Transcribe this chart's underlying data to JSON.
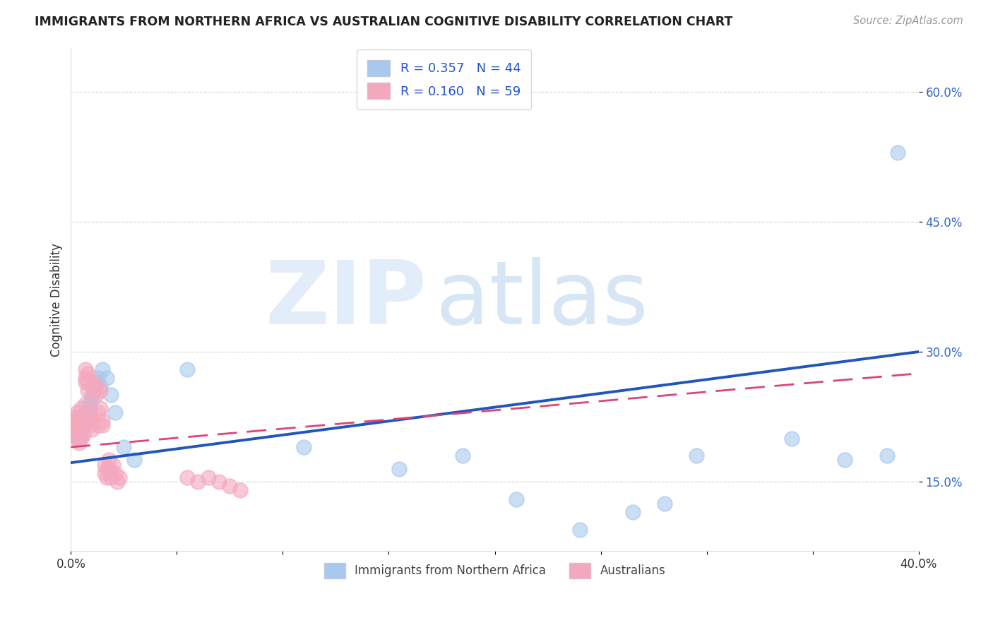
{
  "title": "IMMIGRANTS FROM NORTHERN AFRICA VS AUSTRALIAN COGNITIVE DISABILITY CORRELATION CHART",
  "source": "Source: ZipAtlas.com",
  "ylabel": "Cognitive Disability",
  "xlim": [
    0.0,
    0.4
  ],
  "ylim": [
    0.07,
    0.65
  ],
  "blue_R": 0.357,
  "blue_N": 44,
  "pink_R": 0.16,
  "pink_N": 59,
  "blue_color": "#A8C8EE",
  "pink_color": "#F4A8BE",
  "blue_line_color": "#2255BB",
  "pink_line_color": "#DD4477",
  "grid_color": "#CCCCCC",
  "watermark_zip": "ZIP",
  "watermark_atlas": "atlas",
  "blue_x": [
    0.001,
    0.001,
    0.002,
    0.002,
    0.003,
    0.003,
    0.004,
    0.004,
    0.005,
    0.005,
    0.005,
    0.006,
    0.006,
    0.007,
    0.007,
    0.008,
    0.008,
    0.009,
    0.009,
    0.01,
    0.01,
    0.011,
    0.012,
    0.013,
    0.014,
    0.015,
    0.017,
    0.019,
    0.021,
    0.025,
    0.03,
    0.055,
    0.11,
    0.155,
    0.185,
    0.21,
    0.24,
    0.265,
    0.28,
    0.295,
    0.34,
    0.365,
    0.385,
    0.39
  ],
  "blue_y": [
    0.22,
    0.21,
    0.215,
    0.205,
    0.22,
    0.215,
    0.21,
    0.2,
    0.215,
    0.21,
    0.205,
    0.22,
    0.215,
    0.225,
    0.22,
    0.235,
    0.23,
    0.24,
    0.235,
    0.25,
    0.245,
    0.255,
    0.265,
    0.27,
    0.26,
    0.28,
    0.27,
    0.25,
    0.23,
    0.19,
    0.175,
    0.28,
    0.19,
    0.165,
    0.18,
    0.13,
    0.095,
    0.115,
    0.125,
    0.18,
    0.2,
    0.175,
    0.18,
    0.53
  ],
  "pink_x": [
    0.001,
    0.001,
    0.001,
    0.002,
    0.002,
    0.002,
    0.003,
    0.003,
    0.003,
    0.003,
    0.004,
    0.004,
    0.004,
    0.005,
    0.005,
    0.005,
    0.005,
    0.006,
    0.006,
    0.006,
    0.007,
    0.007,
    0.007,
    0.007,
    0.008,
    0.008,
    0.008,
    0.009,
    0.009,
    0.01,
    0.01,
    0.011,
    0.011,
    0.012,
    0.012,
    0.013,
    0.013,
    0.014,
    0.014,
    0.015,
    0.015,
    0.016,
    0.016,
    0.017,
    0.017,
    0.018,
    0.018,
    0.019,
    0.019,
    0.02,
    0.021,
    0.022,
    0.023,
    0.055,
    0.06,
    0.065,
    0.07,
    0.075,
    0.08
  ],
  "pink_y": [
    0.215,
    0.22,
    0.225,
    0.205,
    0.21,
    0.215,
    0.2,
    0.215,
    0.22,
    0.23,
    0.195,
    0.21,
    0.225,
    0.2,
    0.215,
    0.225,
    0.235,
    0.205,
    0.215,
    0.225,
    0.24,
    0.27,
    0.265,
    0.28,
    0.275,
    0.265,
    0.255,
    0.215,
    0.23,
    0.22,
    0.21,
    0.265,
    0.255,
    0.26,
    0.25,
    0.215,
    0.23,
    0.255,
    0.235,
    0.22,
    0.215,
    0.16,
    0.17,
    0.165,
    0.155,
    0.175,
    0.165,
    0.16,
    0.155,
    0.17,
    0.16,
    0.15,
    0.155,
    0.155,
    0.15,
    0.155,
    0.15,
    0.145,
    0.14
  ]
}
